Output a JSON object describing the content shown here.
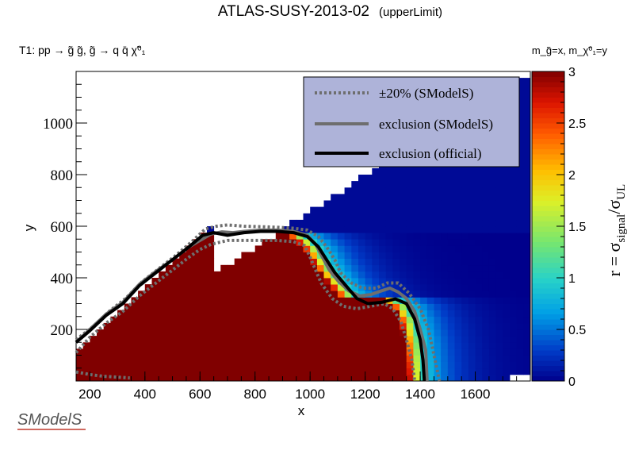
{
  "title": "ATLAS-SUSY-2013-02",
  "title_tag": "(upperLimit)",
  "process": "T1: pp  →  g̃ g̃, g̃  → q q̄  χ̃⁰₁",
  "mass_label": "m_g̃=x, m_χ̃⁰₁=y",
  "logo_text": "SModelS",
  "colors": {
    "official": "#000000",
    "smodels": "#6e6e6e",
    "legend_bg": "#aeb3d9",
    "excluded": "#800000"
  },
  "chart_data": {
    "type": "heatmap",
    "xlabel": "x",
    "ylabel": "y",
    "xlim": [
      150,
      1800
    ],
    "ylim": [
      0,
      1200
    ],
    "x_ticks": [
      200,
      400,
      600,
      800,
      1000,
      1200,
      1400,
      1600
    ],
    "x_tick_labels": [
      "200",
      "400",
      "600",
      "800",
      "1000",
      "1200",
      "1400",
      "1600"
    ],
    "y_ticks": [
      200,
      400,
      600,
      800,
      1000
    ],
    "y_tick_labels": [
      "200",
      "400",
      "600",
      "800",
      "1000"
    ],
    "colorbar": {
      "label": "r = σsignal/σUL",
      "label_main": "r = σ",
      "label_sub1": "signal",
      "label_slash": "/σ",
      "label_sub2": "UL",
      "range": [
        0,
        3
      ],
      "ticks": [
        0,
        0.5,
        1,
        1.5,
        2,
        2.5,
        3
      ],
      "tick_labels": [
        "0",
        "0.5",
        "1",
        "1.5",
        "2",
        "2.5",
        "3"
      ]
    },
    "legend": {
      "position": "top-right",
      "entries": [
        {
          "label": "±20% (SModelS)",
          "style": "dotted"
        },
        {
          "label": "exclusion (SModelS)",
          "style": "solid-gray"
        },
        {
          "label": "exclusion (official)",
          "style": "solid-black"
        }
      ]
    },
    "grid": false,
    "series": [
      {
        "key": "official",
        "points": [
          [
            150,
            150
          ],
          [
            200,
            195
          ],
          [
            260,
            255
          ],
          [
            320,
            300
          ],
          [
            380,
            370
          ],
          [
            440,
            420
          ],
          [
            500,
            470
          ],
          [
            560,
            520
          ],
          [
            610,
            565
          ],
          [
            650,
            575
          ],
          [
            700,
            565
          ],
          [
            760,
            575
          ],
          [
            820,
            580
          ],
          [
            880,
            580
          ],
          [
            940,
            575
          ],
          [
            990,
            560
          ],
          [
            1030,
            520
          ],
          [
            1060,
            470
          ],
          [
            1090,
            420
          ],
          [
            1130,
            370
          ],
          [
            1170,
            320
          ],
          [
            1210,
            300
          ],
          [
            1260,
            305
          ],
          [
            1310,
            318
          ],
          [
            1350,
            300
          ],
          [
            1380,
            240
          ],
          [
            1400,
            160
          ],
          [
            1410,
            80
          ],
          [
            1415,
            0
          ]
        ]
      },
      {
        "key": "smodels",
        "points": [
          [
            150,
            150
          ],
          [
            200,
            200
          ],
          [
            260,
            260
          ],
          [
            320,
            305
          ],
          [
            380,
            375
          ],
          [
            440,
            425
          ],
          [
            500,
            470
          ],
          [
            560,
            520
          ],
          [
            600,
            545
          ],
          [
            640,
            570
          ],
          [
            680,
            578
          ],
          [
            720,
            575
          ],
          [
            760,
            580
          ],
          [
            820,
            585
          ],
          [
            880,
            585
          ],
          [
            940,
            580
          ],
          [
            990,
            565
          ],
          [
            1020,
            530
          ],
          [
            1045,
            480
          ],
          [
            1070,
            430
          ],
          [
            1100,
            390
          ],
          [
            1140,
            350
          ],
          [
            1180,
            330
          ],
          [
            1220,
            335
          ],
          [
            1260,
            350
          ],
          [
            1290,
            360
          ],
          [
            1320,
            345
          ],
          [
            1350,
            320
          ],
          [
            1380,
            270
          ],
          [
            1400,
            200
          ],
          [
            1420,
            120
          ],
          [
            1425,
            0
          ]
        ]
      },
      {
        "key": "plus20",
        "points": [
          [
            150,
            160
          ],
          [
            210,
            210
          ],
          [
            270,
            270
          ],
          [
            330,
            320
          ],
          [
            390,
            385
          ],
          [
            450,
            435
          ],
          [
            510,
            485
          ],
          [
            570,
            540
          ],
          [
            620,
            590
          ],
          [
            660,
            600
          ],
          [
            700,
            605
          ],
          [
            760,
            600
          ],
          [
            820,
            598
          ],
          [
            880,
            596
          ],
          [
            940,
            592
          ],
          [
            990,
            585
          ],
          [
            1030,
            560
          ],
          [
            1060,
            520
          ],
          [
            1090,
            470
          ],
          [
            1110,
            420
          ],
          [
            1150,
            380
          ],
          [
            1190,
            360
          ],
          [
            1240,
            360
          ],
          [
            1280,
            380
          ],
          [
            1320,
            380
          ],
          [
            1360,
            340
          ],
          [
            1400,
            280
          ],
          [
            1430,
            200
          ],
          [
            1450,
            100
          ],
          [
            1470,
            0
          ]
        ]
      },
      {
        "key": "minus20",
        "points": [
          [
            140,
            110
          ],
          [
            200,
            170
          ],
          [
            260,
            225
          ],
          [
            320,
            270
          ],
          [
            380,
            330
          ],
          [
            440,
            380
          ],
          [
            500,
            430
          ],
          [
            560,
            480
          ],
          [
            600,
            510
          ],
          [
            640,
            530
          ],
          [
            700,
            545
          ],
          [
            760,
            545
          ],
          [
            820,
            545
          ],
          [
            880,
            545
          ],
          [
            940,
            540
          ],
          [
            980,
            525
          ],
          [
            1000,
            480
          ],
          [
            1020,
            430
          ],
          [
            1040,
            380
          ],
          [
            1080,
            320
          ],
          [
            1120,
            290
          ],
          [
            1170,
            280
          ],
          [
            1220,
            290
          ],
          [
            1270,
            300
          ],
          [
            1300,
            280
          ],
          [
            1330,
            230
          ],
          [
            1350,
            160
          ],
          [
            1370,
            80
          ],
          [
            1380,
            0
          ]
        ]
      },
      {
        "key": "low_mass",
        "points": [
          [
            150,
            35
          ],
          [
            200,
            25
          ],
          [
            250,
            18
          ],
          [
            300,
            15
          ],
          [
            345,
            12
          ]
        ]
      }
    ]
  }
}
